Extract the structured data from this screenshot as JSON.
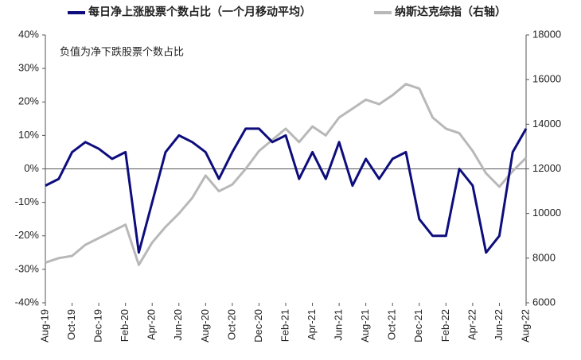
{
  "chart_data": {
    "type": "line",
    "annotation": "负值为净下跌股票个数占比",
    "categories": [
      "Aug-19",
      null,
      "Oct-19",
      null,
      "Dec-19",
      null,
      "Feb-20",
      null,
      "Apr-20",
      null,
      "Jun-20",
      null,
      "Aug-20",
      null,
      "Oct-20",
      null,
      "Dec-20",
      null,
      "Feb-21",
      null,
      "Apr-21",
      null,
      "Jun-21",
      null,
      "Aug-21",
      null,
      "Oct-21",
      null,
      "Dec-21",
      null,
      "Feb-22",
      null,
      "Apr-22",
      null,
      "Jun-22",
      null,
      "Aug-22"
    ],
    "series": [
      {
        "name": "每日净上涨股票个数占比（一个月移动平均）",
        "color": "#0d0d7d",
        "axis": "y",
        "values": [
          -5,
          -3,
          5,
          8,
          6,
          3,
          5,
          -25,
          -10,
          5,
          10,
          8,
          5,
          -3,
          5,
          12,
          12,
          8,
          10,
          -3,
          5,
          -3,
          8,
          -5,
          3,
          -3,
          3,
          5,
          -15,
          -20,
          -20,
          0,
          -5,
          -25,
          -20,
          5,
          12
        ]
      },
      {
        "name": "纳斯达克综指（右轴）",
        "color": "#b8b8b8",
        "axis": "y2",
        "values": [
          7800,
          8000,
          8100,
          8600,
          8900,
          9200,
          9500,
          7700,
          8700,
          9400,
          10000,
          10700,
          11700,
          11000,
          11300,
          12000,
          12800,
          13300,
          13800,
          13200,
          13900,
          13500,
          14300,
          14700,
          15100,
          14900,
          15300,
          15800,
          15600,
          14300,
          13800,
          13600,
          12800,
          11800,
          11200,
          11900,
          12500
        ]
      }
    ],
    "ylim": [
      -40,
      40
    ],
    "yticks": [
      {
        "value": -40,
        "label": "-40%"
      },
      {
        "value": -30,
        "label": "-30%"
      },
      {
        "value": -20,
        "label": "-20%"
      },
      {
        "value": -10,
        "label": "-10%"
      },
      {
        "value": 0,
        "label": "0%"
      },
      {
        "value": 10,
        "label": "10%"
      },
      {
        "value": 20,
        "label": "20%"
      },
      {
        "value": 30,
        "label": "30%"
      },
      {
        "value": 40,
        "label": "40%"
      }
    ],
    "y2lim": [
      6000,
      18000
    ],
    "y2ticks": [
      6000,
      8000,
      10000,
      12000,
      14000,
      16000,
      18000
    ],
    "legend": "top"
  }
}
